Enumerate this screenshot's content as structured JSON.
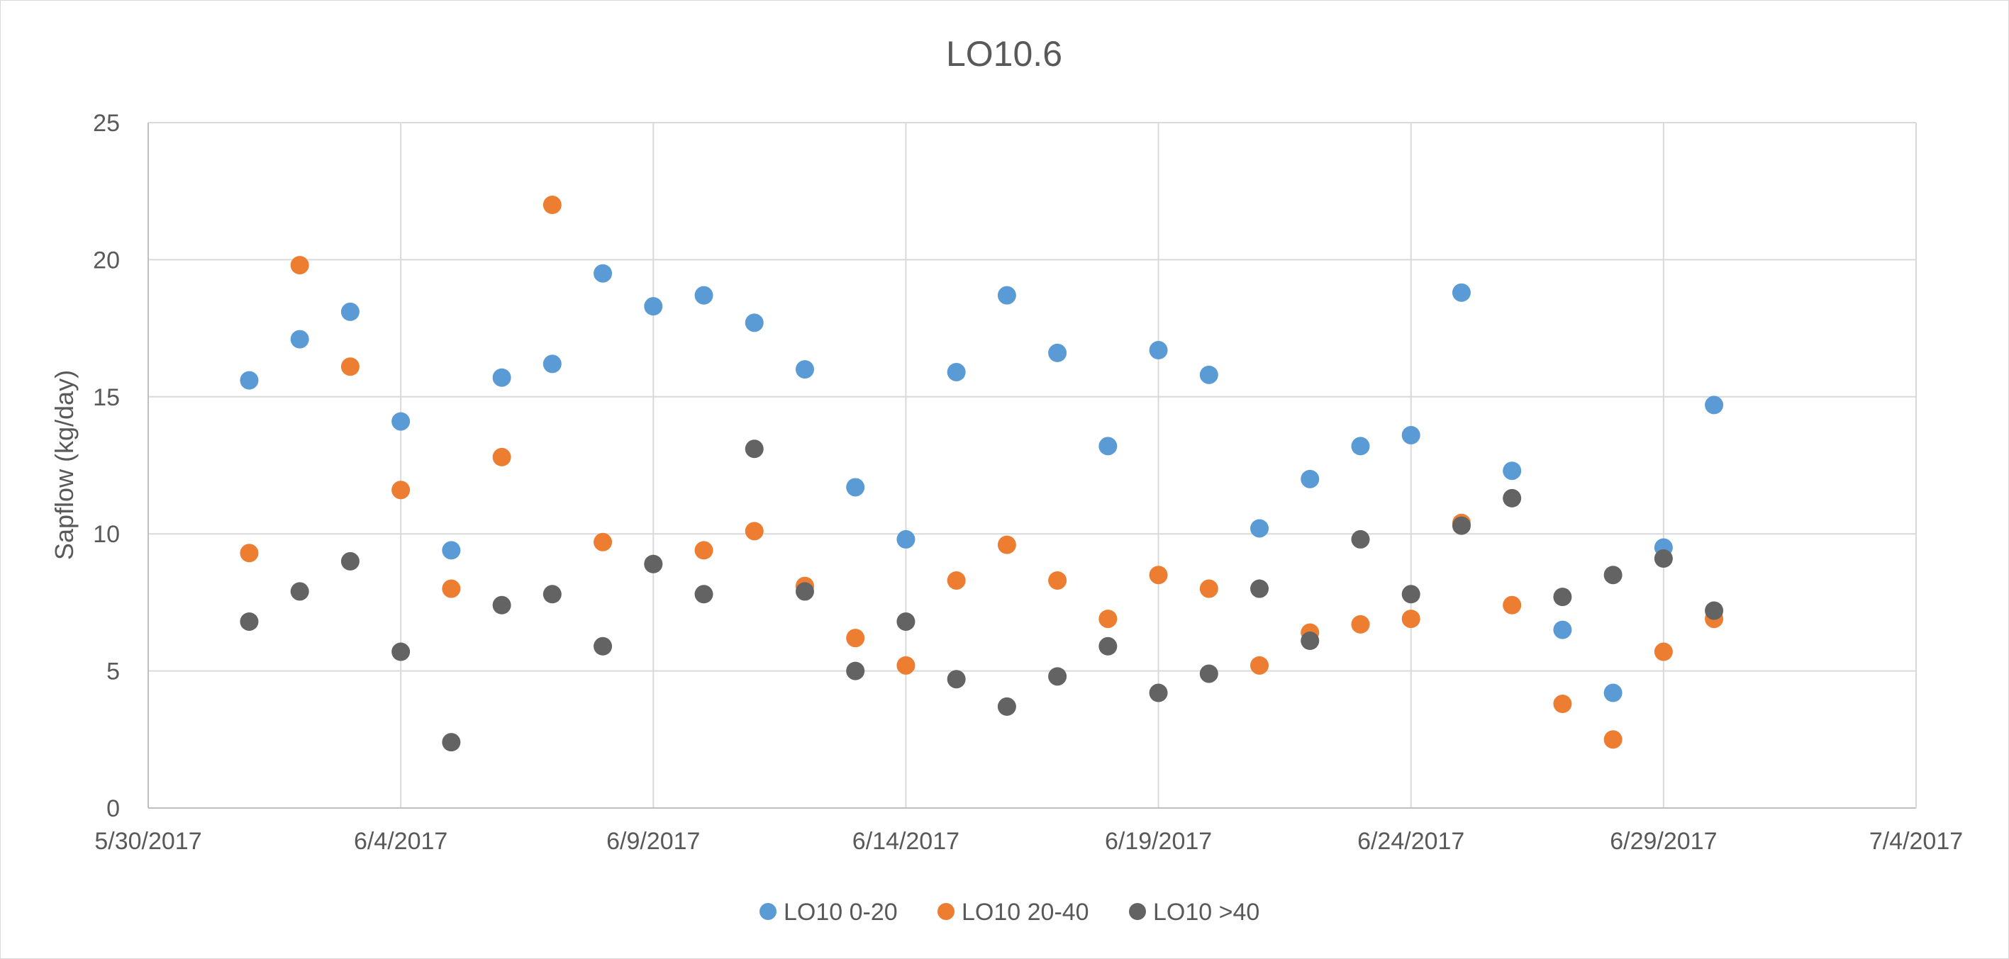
{
  "chart_data": {
    "type": "scatter",
    "title": "LO10.6",
    "xlabel": "",
    "ylabel": "Sapflow (kg/day)",
    "x_axis": {
      "type": "date",
      "min": "5/30/2017",
      "max": "7/4/2017",
      "tick_labels": [
        "5/30/2017",
        "6/4/2017",
        "6/9/2017",
        "6/14/2017",
        "6/19/2017",
        "6/24/2017",
        "6/29/2017",
        "7/4/2017"
      ]
    },
    "y_axis": {
      "min": 0,
      "max": 25,
      "tick_labels": [
        "0",
        "5",
        "10",
        "15",
        "20",
        "25"
      ]
    },
    "grid": true,
    "legend": {
      "position": "bottom"
    },
    "x": [
      "6/1/2017",
      "6/2/2017",
      "6/3/2017",
      "6/4/2017",
      "6/5/2017",
      "6/6/2017",
      "6/7/2017",
      "6/8/2017",
      "6/9/2017",
      "6/10/2017",
      "6/11/2017",
      "6/12/2017",
      "6/13/2017",
      "6/14/2017",
      "6/15/2017",
      "6/16/2017",
      "6/17/2017",
      "6/18/2017",
      "6/19/2017",
      "6/20/2017",
      "6/21/2017",
      "6/22/2017",
      "6/23/2017",
      "6/24/2017",
      "6/25/2017",
      "6/26/2017",
      "6/27/2017",
      "6/28/2017",
      "6/29/2017",
      "6/30/2017"
    ],
    "series": [
      {
        "name": "LO10 0-20",
        "color": "#5b9bd5",
        "values": [
          15.6,
          17.1,
          18.1,
          14.1,
          9.4,
          15.7,
          16.2,
          19.5,
          18.3,
          18.7,
          17.7,
          16.0,
          11.7,
          9.8,
          15.9,
          18.7,
          16.6,
          13.2,
          16.7,
          15.8,
          10.2,
          12.0,
          13.2,
          13.6,
          18.8,
          12.3,
          6.5,
          4.2,
          9.5,
          14.7
        ]
      },
      {
        "name": "LO10 20-40",
        "color": "#ed7d31",
        "values": [
          9.3,
          19.8,
          16.1,
          11.6,
          8.0,
          12.8,
          22.0,
          9.7,
          8.9,
          9.4,
          10.1,
          8.1,
          6.2,
          5.2,
          8.3,
          9.6,
          8.3,
          6.9,
          8.5,
          8.0,
          5.2,
          6.4,
          6.7,
          6.9,
          10.4,
          7.4,
          3.8,
          2.5,
          5.7,
          6.9
        ]
      },
      {
        "name": "LO10 >40",
        "color": "#636363",
        "values": [
          6.8,
          7.9,
          9.0,
          5.7,
          2.4,
          7.4,
          7.8,
          5.9,
          8.9,
          7.8,
          13.1,
          7.9,
          5.0,
          6.8,
          4.7,
          3.7,
          4.8,
          5.9,
          4.2,
          4.9,
          8.0,
          6.1,
          9.8,
          7.8,
          10.3,
          11.3,
          7.7,
          8.5,
          9.1,
          7.2
        ]
      }
    ]
  }
}
